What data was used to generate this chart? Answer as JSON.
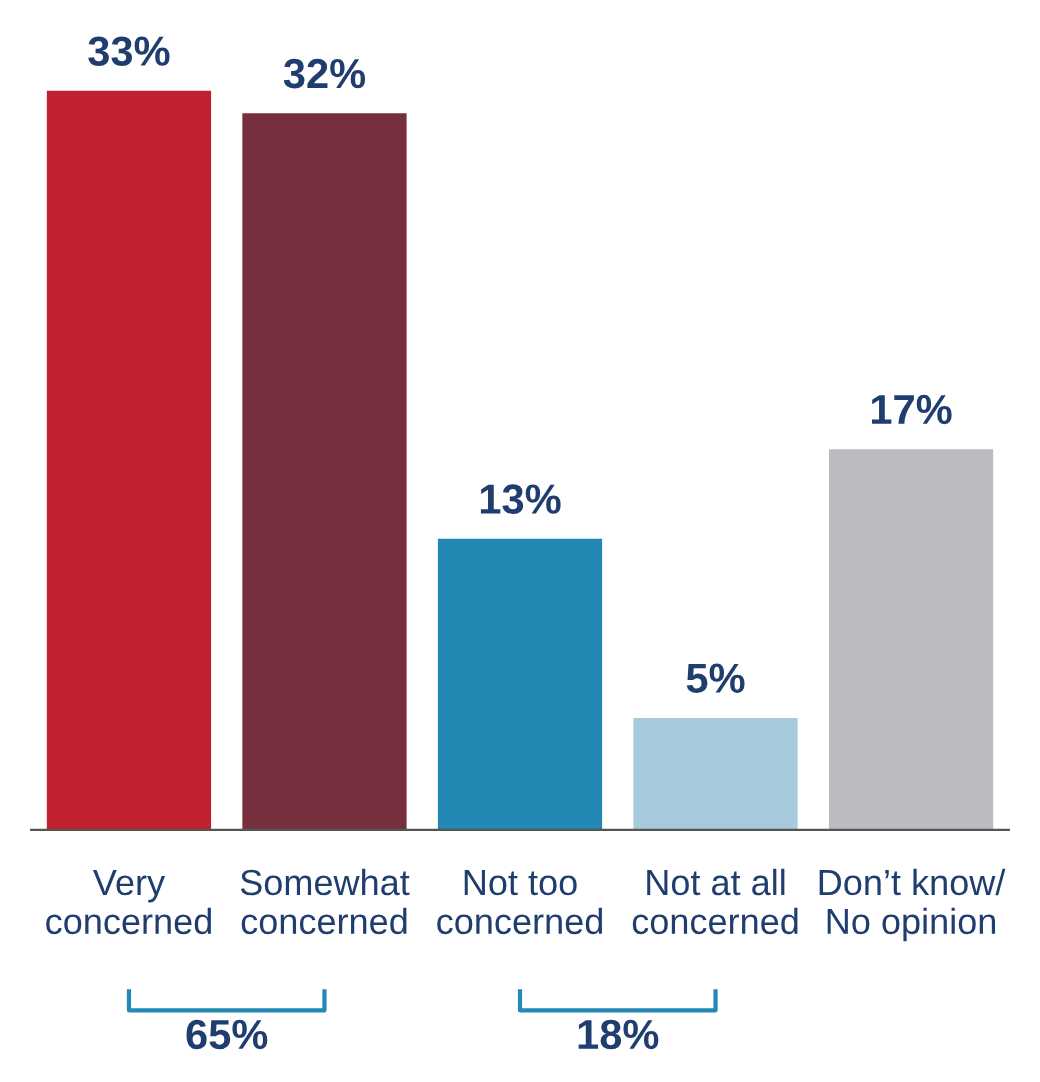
{
  "chart_data": {
    "type": "bar",
    "categories": [
      "Very\nconcerned",
      "Somewhat\nconcerned",
      "Not too\nconcerned",
      "Not at all\nconcerned",
      "Don’t know/\nNo opinion"
    ],
    "values": [
      33,
      32,
      13,
      5,
      17
    ],
    "colors": [
      "#c1202f",
      "#772f3d",
      "#2189b4",
      "#a7cbdc",
      "#bbbcc0"
    ],
    "value_labels": [
      "33%",
      "32%",
      "13%",
      "5%",
      "17%"
    ],
    "annotations": [
      "65%",
      "18%"
    ],
    "grid": false,
    "legend": false
  }
}
